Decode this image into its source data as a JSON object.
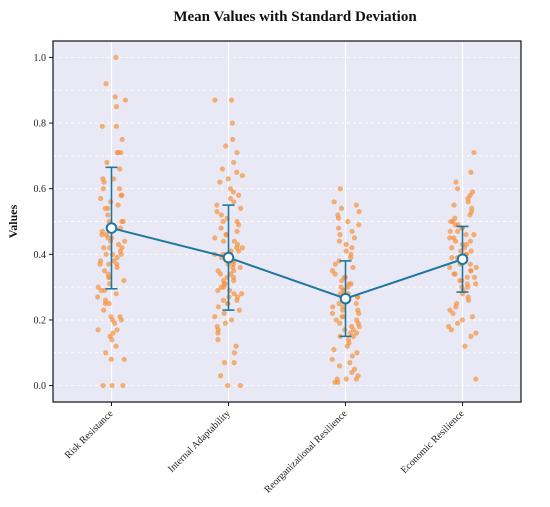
{
  "chart_data": {
    "type": "scatter",
    "title": "Mean Values with Standard Deviation",
    "xlabel": "",
    "ylabel": "Values",
    "categories": [
      "Risk Resistance",
      "Internal Adaptability",
      "Reorganizational Resilience",
      "Economic Resilience"
    ],
    "means": [
      0.48,
      0.39,
      0.265,
      0.385
    ],
    "std": [
      0.185,
      0.16,
      0.115,
      0.1
    ],
    "ylim": [
      -0.05,
      1.05
    ],
    "yticks": [
      "0.0",
      "0.2",
      "0.4",
      "0.6",
      "0.8",
      "1.0"
    ],
    "ytick_values": [
      0.0,
      0.2,
      0.4,
      0.6,
      0.8,
      1.0
    ],
    "grid": true,
    "point_color": "#f5913e",
    "line_color": "#1f77a0",
    "background_color": "#e9e9f5",
    "scatter": [
      [
        1.0,
        0.92,
        0.88,
        0.87,
        0.85,
        0.79,
        0.79,
        0.75,
        0.71,
        0.71,
        0.71,
        0.68,
        0.66,
        0.63,
        0.63,
        0.62,
        0.6,
        0.6,
        0.58,
        0.58,
        0.57,
        0.56,
        0.55,
        0.54,
        0.54,
        0.52,
        0.5,
        0.5,
        0.5,
        0.49,
        0.48,
        0.47,
        0.46,
        0.46,
        0.45,
        0.45,
        0.44,
        0.44,
        0.43,
        0.42,
        0.42,
        0.42,
        0.41,
        0.4,
        0.4,
        0.4,
        0.39,
        0.38,
        0.38,
        0.37,
        0.37,
        0.37,
        0.36,
        0.35,
        0.34,
        0.33,
        0.33,
        0.32,
        0.31,
        0.3,
        0.29,
        0.29,
        0.28,
        0.27,
        0.26,
        0.25,
        0.25,
        0.23,
        0.21,
        0.21,
        0.2,
        0.2,
        0.19,
        0.17,
        0.17,
        0.16,
        0.15,
        0.14,
        0.12,
        0.1,
        0.08,
        0.08,
        0.0,
        0.0,
        0.0
      ],
      [
        0.87,
        0.87,
        0.8,
        0.75,
        0.73,
        0.71,
        0.68,
        0.66,
        0.65,
        0.64,
        0.63,
        0.62,
        0.6,
        0.59,
        0.58,
        0.57,
        0.56,
        0.55,
        0.54,
        0.53,
        0.52,
        0.51,
        0.5,
        0.5,
        0.49,
        0.48,
        0.47,
        0.46,
        0.46,
        0.45,
        0.44,
        0.44,
        0.43,
        0.42,
        0.42,
        0.41,
        0.41,
        0.4,
        0.4,
        0.39,
        0.39,
        0.38,
        0.38,
        0.37,
        0.37,
        0.36,
        0.36,
        0.35,
        0.35,
        0.34,
        0.34,
        0.33,
        0.33,
        0.32,
        0.32,
        0.31,
        0.31,
        0.3,
        0.3,
        0.29,
        0.29,
        0.28,
        0.28,
        0.27,
        0.27,
        0.26,
        0.26,
        0.25,
        0.25,
        0.24,
        0.23,
        0.22,
        0.21,
        0.2,
        0.19,
        0.18,
        0.17,
        0.16,
        0.14,
        0.12,
        0.1,
        0.07,
        0.07,
        0.03,
        0.0,
        0.0
      ],
      [
        0.6,
        0.56,
        0.55,
        0.54,
        0.53,
        0.52,
        0.51,
        0.5,
        0.49,
        0.48,
        0.47,
        0.46,
        0.45,
        0.44,
        0.43,
        0.42,
        0.41,
        0.4,
        0.39,
        0.38,
        0.37,
        0.36,
        0.35,
        0.34,
        0.33,
        0.33,
        0.32,
        0.31,
        0.31,
        0.3,
        0.3,
        0.29,
        0.29,
        0.28,
        0.28,
        0.27,
        0.27,
        0.26,
        0.26,
        0.25,
        0.25,
        0.24,
        0.24,
        0.23,
        0.23,
        0.22,
        0.22,
        0.21,
        0.21,
        0.2,
        0.2,
        0.19,
        0.19,
        0.18,
        0.18,
        0.17,
        0.17,
        0.16,
        0.16,
        0.15,
        0.15,
        0.14,
        0.13,
        0.12,
        0.11,
        0.1,
        0.09,
        0.08,
        0.07,
        0.06,
        0.05,
        0.04,
        0.03,
        0.02,
        0.02,
        0.02,
        0.01,
        0.01
      ],
      [
        0.71,
        0.65,
        0.62,
        0.6,
        0.59,
        0.58,
        0.57,
        0.56,
        0.55,
        0.54,
        0.53,
        0.52,
        0.51,
        0.5,
        0.5,
        0.49,
        0.49,
        0.48,
        0.48,
        0.47,
        0.47,
        0.46,
        0.46,
        0.45,
        0.45,
        0.44,
        0.44,
        0.43,
        0.43,
        0.42,
        0.42,
        0.41,
        0.41,
        0.4,
        0.4,
        0.39,
        0.39,
        0.38,
        0.38,
        0.37,
        0.37,
        0.36,
        0.36,
        0.35,
        0.35,
        0.34,
        0.34,
        0.33,
        0.33,
        0.32,
        0.32,
        0.31,
        0.31,
        0.3,
        0.3,
        0.29,
        0.28,
        0.27,
        0.26,
        0.25,
        0.24,
        0.23,
        0.22,
        0.21,
        0.2,
        0.19,
        0.18,
        0.17,
        0.16,
        0.15,
        0.12,
        0.02
      ]
    ]
  }
}
